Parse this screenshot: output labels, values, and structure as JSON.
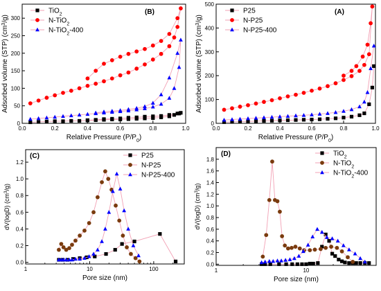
{
  "colors": {
    "black": "#000000",
    "red": "#ff0000",
    "blue": "#0000ff",
    "brown": "#7a3b0e",
    "line_pink": "#f2a0b4"
  },
  "chart_data": [
    {
      "panel": "(B)",
      "type": "line",
      "xlabel": "Relative Pressure (P/P0)",
      "ylabel": "Adsorbed volume (STP) (cm³/g)",
      "xlim": [
        0,
        1.0
      ],
      "ylim": [
        0,
        340
      ],
      "xticks": [
        0,
        0.2,
        0.4,
        0.6,
        0.8,
        1.0
      ],
      "xtick_labels": [
        "0.0",
        "0.2",
        "0.4",
        "0.6",
        "0.8",
        "1.0"
      ],
      "yticks": [
        0,
        50,
        100,
        150,
        200,
        250,
        300
      ],
      "ytick_labels": [
        "0",
        "50",
        "100",
        "150",
        "200",
        "250",
        "300"
      ],
      "legend_position": "top-left",
      "series": [
        {
          "name": "TiO2",
          "marker": "square",
          "color": "#000000",
          "x": [
            0.05,
            0.1,
            0.15,
            0.2,
            0.25,
            0.3,
            0.35,
            0.4,
            0.45,
            0.5,
            0.55,
            0.6,
            0.65,
            0.7,
            0.75,
            0.8,
            0.85,
            0.9,
            0.93,
            0.96,
            0.97,
            0.95,
            0.9,
            0.85,
            0.8,
            0.75,
            0.7,
            0.65,
            0.6,
            0.55,
            0.5,
            0.45,
            0.4
          ],
          "y": [
            3,
            4,
            5,
            6,
            6,
            7,
            7,
            8,
            9,
            10,
            11,
            11,
            12,
            13,
            14,
            15,
            17,
            20,
            24,
            28,
            30,
            28,
            24,
            21,
            20,
            19,
            17,
            16,
            14,
            13,
            12,
            10,
            9
          ]
        },
        {
          "name": "N-TiO2",
          "marker": "circle",
          "color": "#ff0000",
          "x": [
            0.05,
            0.1,
            0.15,
            0.2,
            0.25,
            0.3,
            0.35,
            0.4,
            0.45,
            0.5,
            0.55,
            0.6,
            0.65,
            0.7,
            0.75,
            0.8,
            0.85,
            0.9,
            0.93,
            0.95,
            0.97,
            0.95,
            0.9,
            0.85,
            0.8,
            0.75,
            0.7,
            0.65,
            0.6,
            0.55,
            0.5,
            0.45,
            0.4
          ],
          "y": [
            57,
            65,
            73,
            80,
            87,
            93,
            100,
            107,
            113,
            120,
            128,
            137,
            145,
            156,
            168,
            182,
            198,
            220,
            245,
            275,
            328,
            300,
            255,
            235,
            222,
            212,
            205,
            198,
            190,
            180,
            170,
            150,
            128
          ]
        },
        {
          "name": "N-TiO2-400",
          "marker": "triangle",
          "color": "#0000ff",
          "x": [
            0.05,
            0.1,
            0.15,
            0.2,
            0.25,
            0.3,
            0.35,
            0.4,
            0.45,
            0.5,
            0.55,
            0.6,
            0.65,
            0.7,
            0.75,
            0.8,
            0.85,
            0.9,
            0.93,
            0.96,
            0.97,
            0.95,
            0.9,
            0.85,
            0.8,
            0.75,
            0.7,
            0.65,
            0.6,
            0.55,
            0.5,
            0.45
          ],
          "y": [
            12,
            14,
            16,
            18,
            20,
            22,
            24,
            26,
            28,
            30,
            32,
            34,
            36,
            39,
            42,
            47,
            55,
            72,
            100,
            160,
            238,
            200,
            130,
            82,
            58,
            48,
            43,
            40,
            37,
            35,
            33,
            30
          ]
        }
      ]
    },
    {
      "panel": "(A)",
      "type": "line",
      "xlabel": "Relative Pressure (P/P0)",
      "ylabel": "Adsorbed volume (STP) (cm³/g)",
      "xlim": [
        0,
        1.0
      ],
      "ylim": [
        0,
        500
      ],
      "xticks": [
        0,
        0.2,
        0.4,
        0.6,
        0.8,
        1.0
      ],
      "xtick_labels": [
        "0.0",
        "0.2",
        "0.4",
        "0.6",
        "0.8",
        "1.0"
      ],
      "yticks": [
        0,
        100,
        200,
        300,
        400,
        500
      ],
      "ytick_labels": [
        "0",
        "100",
        "200",
        "300",
        "400",
        "500"
      ],
      "legend_position": "top-left",
      "series": [
        {
          "name": "P25",
          "marker": "square",
          "color": "#000000",
          "x": [
            0.05,
            0.1,
            0.15,
            0.2,
            0.25,
            0.3,
            0.35,
            0.4,
            0.45,
            0.5,
            0.55,
            0.6,
            0.65,
            0.7,
            0.75,
            0.8,
            0.85,
            0.9,
            0.93,
            0.96,
            0.98,
            0.99
          ],
          "y": [
            5,
            6,
            7,
            8,
            9,
            10,
            11,
            12,
            13,
            14,
            15,
            16,
            17,
            19,
            21,
            24,
            28,
            34,
            42,
            80,
            150,
            240
          ]
        },
        {
          "name": "N-P25",
          "marker": "circle",
          "color": "#ff0000",
          "x": [
            0.05,
            0.1,
            0.15,
            0.2,
            0.25,
            0.3,
            0.35,
            0.4,
            0.45,
            0.5,
            0.55,
            0.6,
            0.65,
            0.7,
            0.75,
            0.8,
            0.85,
            0.9,
            0.93,
            0.96,
            0.98,
            0.97,
            0.95,
            0.92,
            0.88,
            0.85,
            0.8
          ],
          "y": [
            57,
            63,
            70,
            76,
            83,
            90,
            97,
            105,
            113,
            120,
            128,
            137,
            146,
            156,
            168,
            182,
            198,
            220,
            245,
            290,
            490,
            420,
            330,
            280,
            240,
            220,
            200
          ]
        },
        {
          "name": "N-P25-400",
          "marker": "triangle",
          "color": "#0000ff",
          "x": [
            0.05,
            0.1,
            0.15,
            0.2,
            0.25,
            0.3,
            0.35,
            0.4,
            0.45,
            0.5,
            0.55,
            0.6,
            0.65,
            0.7,
            0.75,
            0.8,
            0.85,
            0.9,
            0.93,
            0.95,
            0.97,
            0.99
          ],
          "y": [
            14,
            16,
            18,
            20,
            22,
            24,
            26,
            28,
            30,
            32,
            34,
            36,
            39,
            42,
            46,
            51,
            58,
            70,
            90,
            130,
            230,
            325
          ]
        }
      ]
    },
    {
      "panel": "(C)",
      "type": "line",
      "xlabel": "Pore size (nm)",
      "ylabel": "dV(logD) (cm³/g)",
      "xscale": "log",
      "xlim": [
        1,
        300
      ],
      "ylim": [
        -0.02,
        1.35
      ],
      "xticks": [
        1,
        10,
        100
      ],
      "xtick_labels": [
        "1",
        "10",
        "100"
      ],
      "yticks": [
        0,
        0.2,
        0.4,
        0.6,
        0.8,
        1.0,
        1.2
      ],
      "ytick_labels": [
        "0.0",
        "0.2",
        "0.4",
        "0.6",
        "0.8",
        "1.0",
        "1.2"
      ],
      "legend_position": "top-right",
      "series": [
        {
          "name": "P25",
          "marker": "square",
          "color": "#000000",
          "x": [
            3.3,
            3.8,
            4.5,
            5.5,
            7,
            9,
            12,
            18,
            25,
            32,
            50,
            125,
            220
          ],
          "y": [
            0.03,
            0.03,
            0.03,
            0.04,
            0.05,
            0.06,
            0.07,
            0.1,
            0.15,
            0.22,
            0.25,
            0.34,
            0.01
          ]
        },
        {
          "name": "N-P25",
          "marker": "circle",
          "color": "#7a3b0e",
          "x": [
            3.3,
            3.6,
            3.9,
            4.3,
            4.8,
            5.3,
            6,
            7,
            8.3,
            9.8,
            11.5,
            13.3,
            15.5,
            17.5,
            19.5,
            22,
            25.5,
            29,
            33,
            38,
            44,
            52,
            60
          ],
          "y": [
            0.15,
            0.22,
            0.18,
            0.15,
            0.17,
            0.21,
            0.26,
            0.32,
            0.38,
            0.47,
            0.6,
            0.78,
            0.96,
            1.09,
            1.0,
            0.87,
            0.68,
            0.5,
            0.32,
            0.18,
            0.1,
            0.05,
            0.01
          ]
        },
        {
          "name": "N-P25-400",
          "marker": "triangle",
          "color": "#0000ff",
          "x": [
            3.3,
            3.6,
            3.9,
            4.3,
            4.8,
            5.3,
            6,
            7,
            8.3,
            9.8,
            11.5,
            13.3,
            15.5,
            17.5,
            20,
            23,
            26.5,
            30,
            34.5,
            40,
            48,
            58
          ],
          "y": [
            0.03,
            0.03,
            0.03,
            0.03,
            0.03,
            0.03,
            0.04,
            0.04,
            0.05,
            0.07,
            0.1,
            0.15,
            0.25,
            0.4,
            0.6,
            0.85,
            1.06,
            0.88,
            0.62,
            0.4,
            0.2,
            0.08
          ]
        }
      ]
    },
    {
      "panel": "(D)",
      "type": "line",
      "xlabel": "Pore size (nm)",
      "ylabel": "dV(logD) (cm³/g)",
      "xscale": "log",
      "xlim": [
        1,
        60
      ],
      "ylim": [
        -0.02,
        2.0
      ],
      "xticks": [
        1,
        10
      ],
      "xtick_labels": [
        "1",
        "10"
      ],
      "yticks": [
        0,
        0.2,
        0.4,
        0.6,
        0.8,
        1.0,
        1.2,
        1.4,
        1.6,
        1.8
      ],
      "ytick_labels": [
        "0.0",
        "0.2",
        "0.4",
        "0.6",
        "0.8",
        "1.0",
        "1.2",
        "1.4",
        "1.6",
        "1.8"
      ],
      "legend_position": "top-right",
      "series": [
        {
          "name": "TiO2",
          "marker": "square",
          "color": "#000000",
          "x": [
            3.2,
            3.5,
            4,
            5,
            6,
            7,
            8,
            9,
            10,
            11,
            12,
            13.5,
            15,
            16.5,
            18,
            19.5,
            21,
            23,
            25,
            27,
            30,
            33,
            36,
            40,
            45,
            50
          ],
          "y": [
            0,
            0,
            0,
            0,
            0,
            0,
            0,
            0,
            0,
            0.01,
            0.01,
            0.02,
            0.3,
            0.51,
            0.4,
            0.18,
            0.14,
            0.08,
            0.05,
            0.03,
            0.02,
            0.02,
            0.02,
            0.02,
            0.02,
            0.02
          ]
        },
        {
          "name": "N-TiO2",
          "marker": "circle",
          "color": "#7a3b0e",
          "x": [
            3.3,
            3.6,
            3.9,
            4.2,
            4.5,
            4.8,
            5.1,
            5.4,
            5.8,
            6.3,
            6.9,
            7.6,
            8.5,
            9.5,
            11,
            12.5,
            14.5,
            16.5,
            19,
            22,
            25,
            29,
            33
          ],
          "y": [
            0.13,
            0.5,
            1.1,
            1.76,
            1.1,
            1.08,
            0.9,
            0.48,
            0.32,
            0.27,
            0.28,
            0.3,
            0.27,
            0.24,
            0.24,
            0.25,
            0.26,
            0.28,
            0.3,
            0.28,
            0.22,
            0.12,
            0.04
          ]
        },
        {
          "name": "N-TiO2-400",
          "marker": "triangle",
          "color": "#0000ff",
          "x": [
            3.2,
            3.5,
            3.9,
            4.3,
            4.8,
            5.3,
            5.9,
            6.6,
            7.4,
            8.3,
            9.3,
            10.5,
            11.8,
            13.3,
            15,
            17,
            19.5,
            22.5,
            26,
            30,
            35,
            40,
            45
          ],
          "y": [
            0.03,
            0.04,
            0.05,
            0.05,
            0.06,
            0.06,
            0.07,
            0.08,
            0.1,
            0.14,
            0.22,
            0.33,
            0.47,
            0.6,
            0.55,
            0.46,
            0.44,
            0.4,
            0.32,
            0.25,
            0.18,
            0.1,
            0.04
          ]
        }
      ]
    }
  ]
}
